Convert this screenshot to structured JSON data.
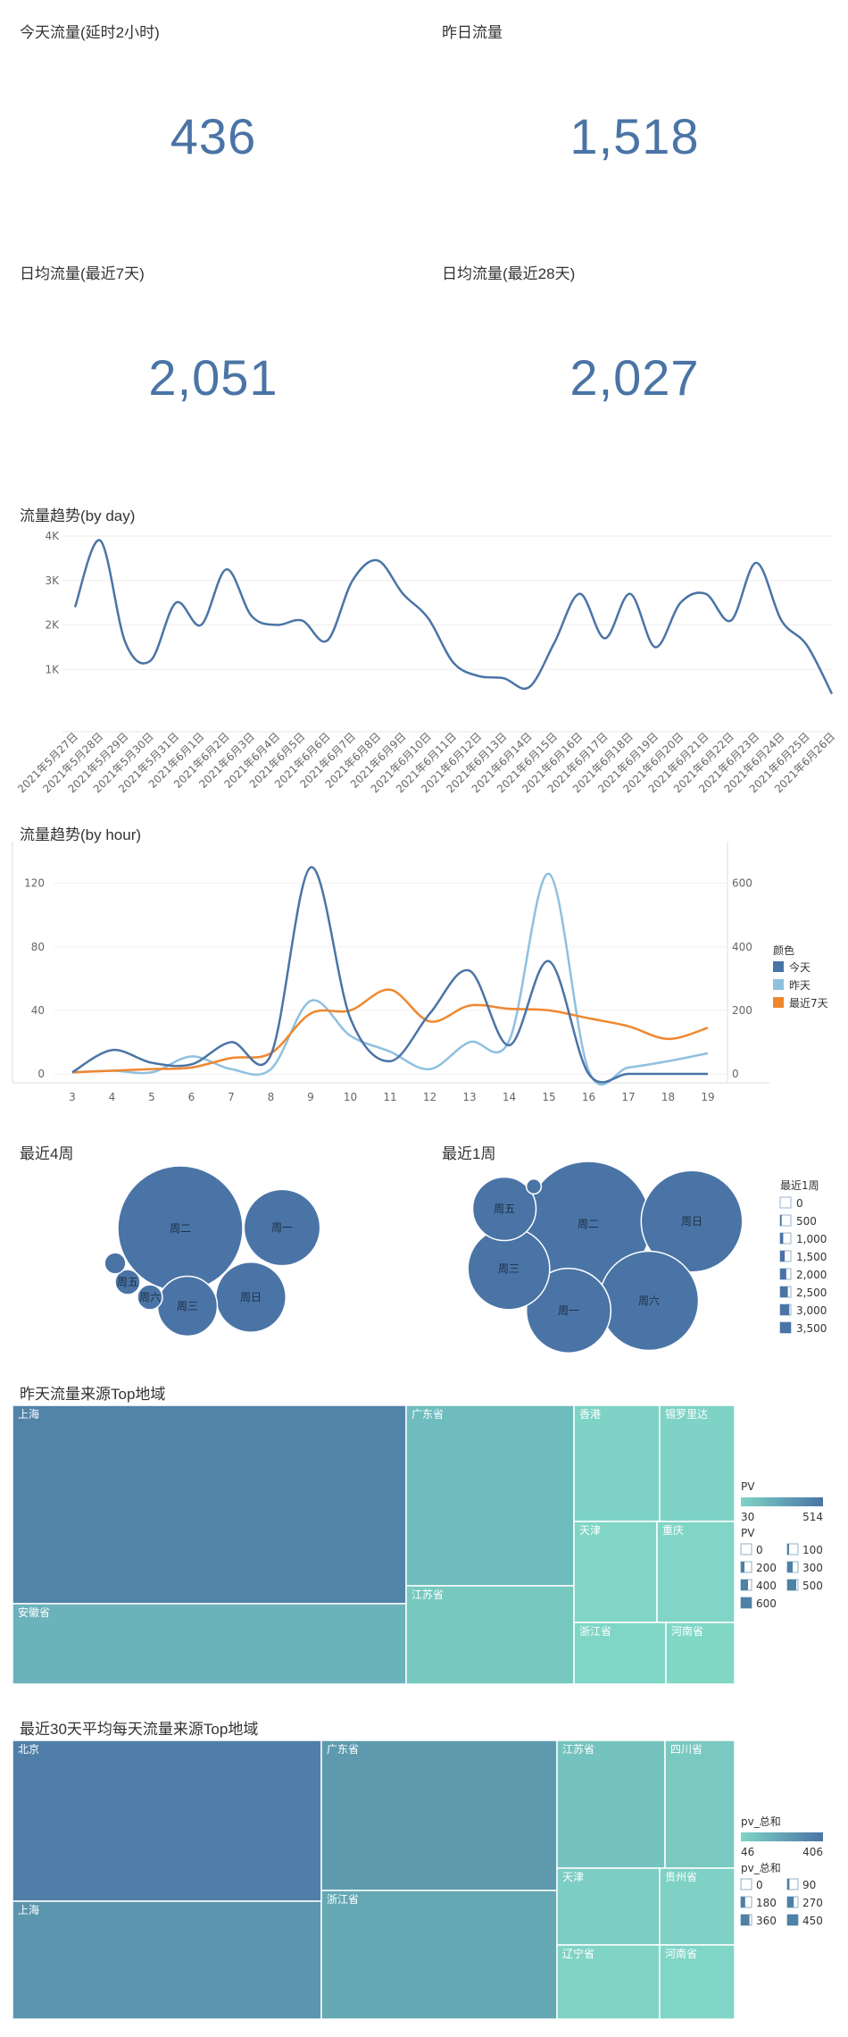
{
  "kpis": {
    "today": {
      "label": "今天流量(延时2小时)",
      "value": "436"
    },
    "yesterday": {
      "label": "昨日流量",
      "value": "1,518"
    },
    "avg7": {
      "label": "日均流量(最近7天)",
      "value": "2,051"
    },
    "avg28": {
      "label": "日均流量(最近28天)",
      "value": "2,027"
    }
  },
  "sections": {
    "daily": "流量趋势(by day)",
    "hourly": "流量趋势(by hour)",
    "weeks4": "最近4周",
    "week1": "最近1周",
    "tree1": "昨天流量来源Top地域",
    "tree2": "最近30天平均每天流量来源Top地域"
  },
  "colors": {
    "primary": "#4a74a6",
    "light": "#8fc0e0",
    "orange": "#f0872e"
  },
  "chart_data": [
    {
      "type": "line",
      "title": "流量趋势(by day)",
      "categories": [
        "2021年5月27日",
        "2021年5月28日",
        "2021年5月29日",
        "2021年5月30日",
        "2021年5月31日",
        "2021年6月1日",
        "2021年6月2日",
        "2021年6月3日",
        "2021年6月4日",
        "2021年6月5日",
        "2021年6月6日",
        "2021年6月7日",
        "2021年6月8日",
        "2021年6月9日",
        "2021年6月10日",
        "2021年6月11日",
        "2021年6月12日",
        "2021年6月13日",
        "2021年6月14日",
        "2021年6月15日",
        "2021年6月16日",
        "2021年6月17日",
        "2021年6月18日",
        "2021年6月19日",
        "2021年6月20日",
        "2021年6月21日",
        "2021年6月22日",
        "2021年6月23日",
        "2021年6月24日",
        "2021年6月25日",
        "2021年6月26日"
      ],
      "values": [
        2400,
        3900,
        1600,
        1200,
        2500,
        2000,
        3250,
        2200,
        2000,
        2100,
        1650,
        3000,
        3450,
        2700,
        2150,
        1150,
        850,
        800,
        600,
        1600,
        2700,
        1700,
        2700,
        1500,
        2500,
        2700,
        2100,
        3400,
        2100,
        1550,
        450
      ],
      "yticks": [
        "1K",
        "2K",
        "3K",
        "4K"
      ],
      "ylim": [
        0,
        4000
      ]
    },
    {
      "type": "line",
      "title": "流量趋势(by hour)",
      "x": [
        3,
        4,
        5,
        6,
        7,
        8,
        9,
        10,
        11,
        12,
        13,
        14,
        15,
        16,
        17,
        18,
        19
      ],
      "series": [
        {
          "name": "今天",
          "axis": "left",
          "values": [
            1,
            15,
            7,
            6,
            20,
            12,
            130,
            35,
            8,
            38,
            65,
            18,
            71,
            0,
            0,
            0,
            0
          ]
        },
        {
          "name": "昨天",
          "axis": "right",
          "values": [
            5,
            10,
            5,
            55,
            15,
            15,
            230,
            120,
            70,
            15,
            100,
            105,
            630,
            10,
            20,
            40,
            65
          ]
        },
        {
          "name": "最近7天",
          "axis": "right",
          "values": [
            5,
            10,
            15,
            20,
            50,
            65,
            190,
            200,
            265,
            165,
            215,
            205,
            200,
            175,
            150,
            110,
            145
          ]
        }
      ],
      "left_ticks": [
        "0",
        "40",
        "80",
        "120"
      ],
      "right_ticks": [
        "0",
        "200",
        "400",
        "600"
      ],
      "left_ylim": [
        0,
        135
      ],
      "right_ylim": [
        0,
        675
      ],
      "legend_title": "颜色"
    }
  ],
  "bubbles4": [
    {
      "label": "周二",
      "value": 3500
    },
    {
      "label": "周一",
      "value": 1300
    },
    {
      "label": "周日",
      "value": 1100
    },
    {
      "label": "周三",
      "value": 800
    },
    {
      "label": "周五",
      "value": 140
    },
    {
      "label": "周六",
      "value": 140
    },
    {
      "label": "",
      "value": 100
    }
  ],
  "bubbles1": [
    {
      "label": "周二",
      "value": 3500
    },
    {
      "label": "周日",
      "value": 2300
    },
    {
      "label": "周六",
      "value": 2200
    },
    {
      "label": "周一",
      "value": 1600
    },
    {
      "label": "周三",
      "value": 1500
    },
    {
      "label": "周五",
      "value": 900
    },
    {
      "label": "",
      "value": 50
    }
  ],
  "size_legend": {
    "title": "最近1周",
    "items": [
      "0",
      "500",
      "1,000",
      "1,500",
      "2,000",
      "2,500",
      "3,000",
      "3,500"
    ]
  },
  "tree1": {
    "cells": [
      "上海",
      "安徽省",
      "广东省",
      "江苏省",
      "香港",
      "锡罗里达",
      "天津",
      "重庆",
      "浙江省",
      "河南省"
    ],
    "legend": {
      "title": "PV",
      "min": "30",
      "max": "514",
      "size_title": "PV",
      "items": [
        "0",
        "100",
        "200",
        "300",
        "400",
        "500",
        "600"
      ]
    }
  },
  "tree2": {
    "cells": [
      "北京",
      "上海",
      "广东省",
      "浙江省",
      "江苏省",
      "四川省",
      "天津",
      "贵州省",
      "辽宁省",
      "河南省"
    ],
    "legend": {
      "title": "pv_总和",
      "min": "46",
      "max": "406",
      "size_title": "pv_总和",
      "items": [
        "0",
        "90",
        "180",
        "270",
        "360",
        "450"
      ]
    }
  }
}
